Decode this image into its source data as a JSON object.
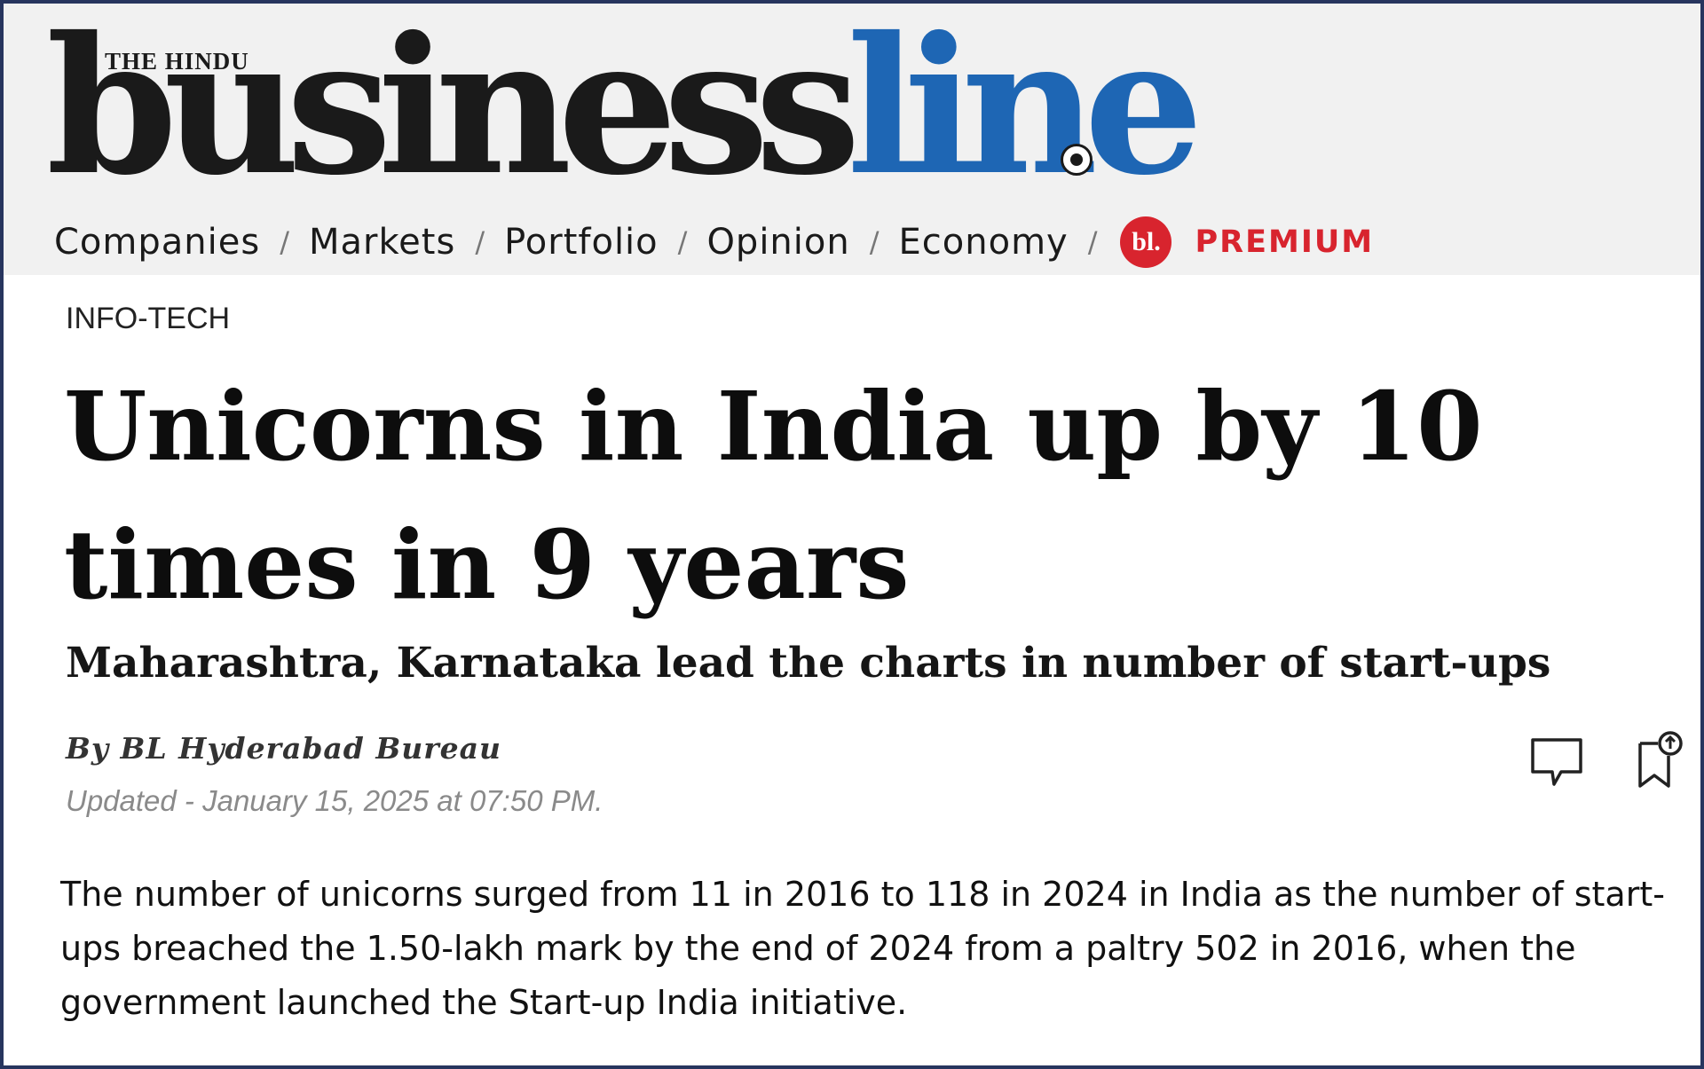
{
  "header": {
    "logo": {
      "top_line": "THE HINDU",
      "word_part_a": "business",
      "word_part_b": "line",
      "colors": {
        "dark": "#1a1a1a",
        "blue": "#1e66b4"
      }
    },
    "nav": [
      {
        "label": "Companies"
      },
      {
        "label": "Markets"
      },
      {
        "label": "Portfolio"
      },
      {
        "label": "Opinion"
      },
      {
        "label": "Economy"
      }
    ],
    "separator": "/",
    "premium": {
      "badge_text": "bl.",
      "label": "PREMIUM",
      "color": "#d8242e"
    }
  },
  "article": {
    "kicker": "INFO-TECH",
    "headline": "Unicorns in India up by 10 times in 9 years",
    "subhead": "Maharashtra, Karnataka lead the charts in number of start-ups",
    "byline": "By BL Hyderabad Bureau",
    "updated": "Updated - January 15, 2025 at 07:50 PM.",
    "body": "The number of unicorns surged from 11 in 2016 to 118 in 2024 in India as the number of start-ups breached the 1.50-lakh mark by the end of 2024 from a paltry 502 in 2016, when the government launched the Start-up India initiative.",
    "actions": [
      {
        "icon": "comment-icon"
      },
      {
        "icon": "bookmark-icon"
      }
    ]
  }
}
